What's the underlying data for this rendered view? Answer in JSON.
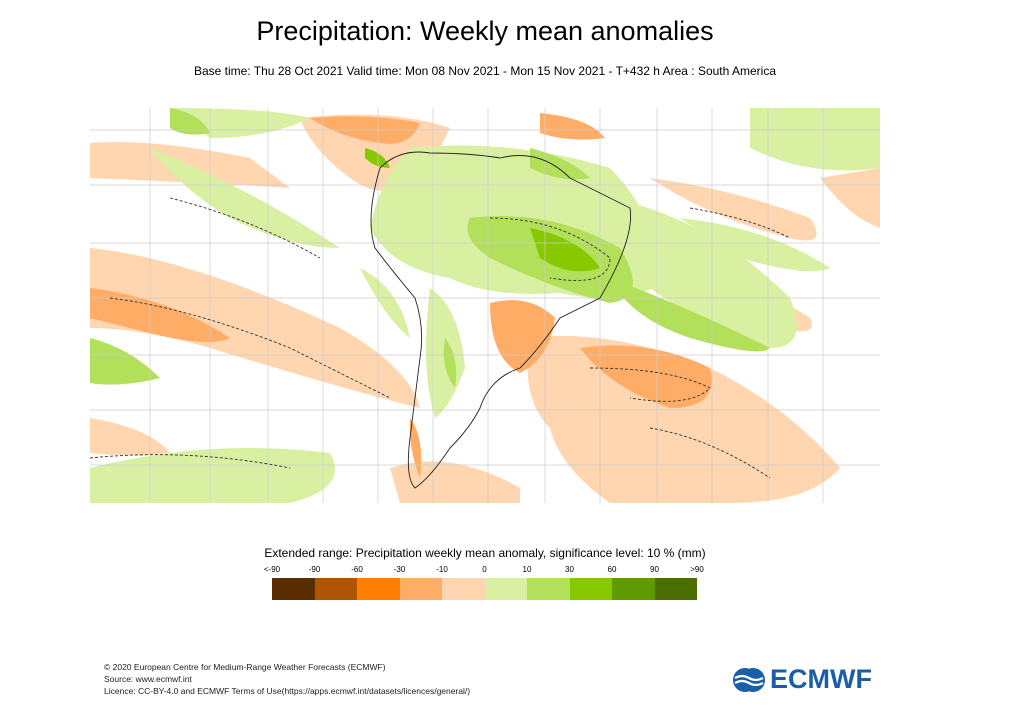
{
  "title": "Precipitation: Weekly mean anomalies",
  "subtitle": "Base time: Thu 28 Oct 2021 Valid time: Mon 08 Nov 2021 - Mon 15 Nov 2021 - T+432 h Area : South America",
  "legend": {
    "title": "Extended range: Precipitation weekly mean anomaly, significance level: 10 % (mm)",
    "labels": [
      "<-90",
      "-90",
      "-60",
      "-30",
      "-10",
      "0",
      "10",
      "30",
      "60",
      "90",
      ">90"
    ],
    "colors": [
      "#5a2d00",
      "#ad5500",
      "#ff8000",
      "#ffad66",
      "#ffd6b0",
      "#d9f0a3",
      "#b2e05a",
      "#88c800",
      "#5e9a00",
      "#4a6e00"
    ]
  },
  "footer": {
    "line1": "© 2020 European Centre for Medium-Range Weather Forecasts (ECMWF)",
    "line2": "Source: www.ecmwf.int",
    "line3": "Licence: CC-BY-4.0 and ECMWF Terms of Use(https://apps.ecmwf.int/datasets/licences/general/)"
  },
  "logo": "ECMWF"
}
